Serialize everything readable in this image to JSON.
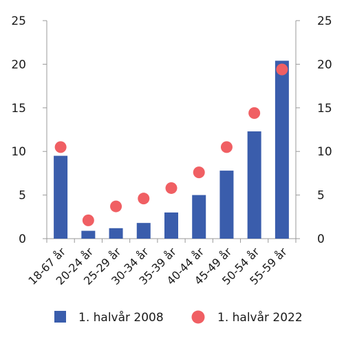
{
  "chart_data": {
    "type": "bar",
    "categories": [
      "18-67 år",
      "20-24 år",
      "25-29 år",
      "30-34 år",
      "35-39 år",
      "40-44 år",
      "45-49 år",
      "50-54 år",
      "55-59 år"
    ],
    "series": [
      {
        "name": "1. halvår 2008",
        "kind": "bar",
        "color": "#3a5dac",
        "values": [
          9.5,
          0.9,
          1.2,
          1.8,
          3.0,
          5.0,
          7.8,
          12.3,
          20.4
        ]
      },
      {
        "name": "1. halvår 2022",
        "kind": "dot",
        "color": "#f05f63",
        "values": [
          10.5,
          2.1,
          3.7,
          4.6,
          5.8,
          7.6,
          10.5,
          14.4,
          19.4
        ]
      }
    ],
    "ylim": [
      0,
      25
    ],
    "yticks": [
      0,
      5,
      10,
      15,
      20,
      25
    ],
    "y_axis_both_sides": true,
    "legend_position": "bottom",
    "title": "",
    "xlabel": "",
    "ylabel": ""
  }
}
